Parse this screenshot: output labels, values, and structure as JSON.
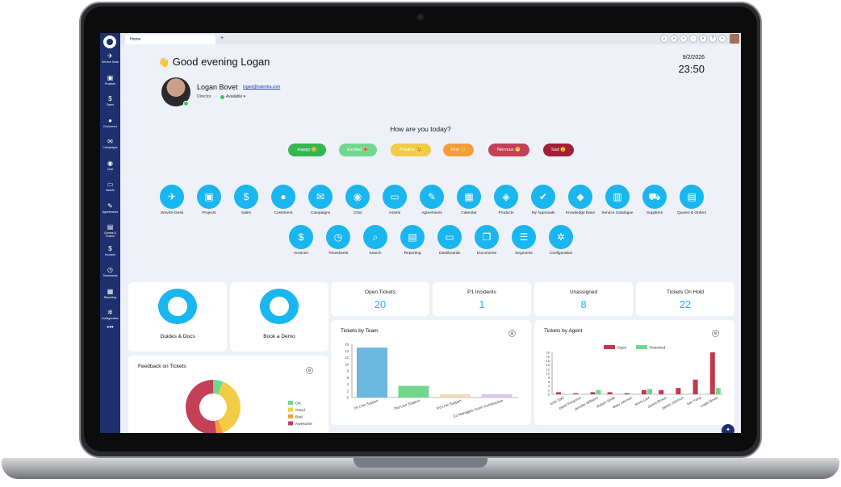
{
  "topbar": {
    "tab_home": "Home",
    "tab_add": "+",
    "icons": [
      {
        "name": "search-icon",
        "glyph": "⌕"
      },
      {
        "name": "bell-icon",
        "glyph": "•"
      },
      {
        "name": "lock-icon",
        "glyph": "•"
      },
      {
        "name": "globe-icon",
        "glyph": "◦"
      },
      {
        "name": "feed-icon",
        "glyph": "•"
      },
      {
        "name": "help-icon",
        "glyph": "?"
      },
      {
        "name": "lightbulb-icon",
        "glyph": "•"
      }
    ]
  },
  "sidebar": {
    "items": [
      {
        "name": "service-desk",
        "label": "Service Desk",
        "glyph": "✈"
      },
      {
        "name": "projects",
        "label": "Projects",
        "glyph": "▣"
      },
      {
        "name": "sales",
        "label": "Sales",
        "glyph": "$"
      },
      {
        "name": "customers",
        "label": "Customers",
        "glyph": "●"
      },
      {
        "name": "campaigns",
        "label": "Campaigns",
        "glyph": "✉"
      },
      {
        "name": "chat",
        "label": "Chat",
        "glyph": "◉"
      },
      {
        "name": "assets",
        "label": "Assets",
        "glyph": "▭"
      },
      {
        "name": "agreements",
        "label": "Agreements",
        "glyph": "✎"
      },
      {
        "name": "quotes-orders",
        "label": "Quotes & Orders",
        "glyph": "▤"
      },
      {
        "name": "invoices",
        "label": "Invoices",
        "glyph": "$"
      },
      {
        "name": "timesheets",
        "label": "Timesheets",
        "glyph": "◷"
      },
      {
        "name": "reporting",
        "label": "Reporting",
        "glyph": "▦"
      },
      {
        "name": "configuration",
        "label": "Configuration",
        "glyph": "✲"
      }
    ],
    "more": "•••"
  },
  "greeting": {
    "emoji": "👋",
    "text": "Good evening Logan"
  },
  "clock": {
    "date": "9/2/2026",
    "time": "23:50"
  },
  "user": {
    "name": "Logan Bovet",
    "email": "logan@halentra.com",
    "role": "Director",
    "status": "Available ▾"
  },
  "mood": {
    "question": "How are you today?",
    "options": [
      {
        "label": "Happy 😊",
        "color": "#34b652"
      },
      {
        "label": "Excited 😻",
        "color": "#6fd88e"
      },
      {
        "label": "Positive 😉",
        "color": "#f2cc44"
      },
      {
        "label": "Fine 🙃",
        "color": "#f59d3a"
      },
      {
        "label": "Nervous 😬",
        "color": "#c44057"
      },
      {
        "label": "Sad 😟",
        "color": "#a21f35"
      }
    ]
  },
  "apps": {
    "row1": [
      {
        "name": "service-desk",
        "label": "Service Desk",
        "glyph": "✈"
      },
      {
        "name": "projects",
        "label": "Projects",
        "glyph": "▣"
      },
      {
        "name": "sales",
        "label": "Sales",
        "glyph": "$"
      },
      {
        "name": "customers",
        "label": "Customers",
        "glyph": "●"
      },
      {
        "name": "campaigns",
        "label": "Campaigns",
        "glyph": "✉"
      },
      {
        "name": "chat",
        "label": "Chat",
        "glyph": "◉"
      },
      {
        "name": "assets",
        "label": "Assets",
        "glyph": "▭"
      },
      {
        "name": "agreements",
        "label": "Agreements",
        "glyph": "✎"
      },
      {
        "name": "calendar",
        "label": "Calendar",
        "glyph": "▦"
      },
      {
        "name": "products",
        "label": "Products",
        "glyph": "◈"
      },
      {
        "name": "my-approvals",
        "label": "My Approvals",
        "glyph": "✔"
      },
      {
        "name": "knowledge-base",
        "label": "Knowledge Base",
        "glyph": "◆"
      },
      {
        "name": "service-catalogue",
        "label": "Service Catalogue",
        "glyph": "▥"
      },
      {
        "name": "suppliers",
        "label": "Suppliers",
        "glyph": "⛟"
      },
      {
        "name": "quotes-orders",
        "label": "Quotes & Orders",
        "glyph": "▤"
      }
    ],
    "row2": [
      {
        "name": "invoices",
        "label": "Invoices",
        "glyph": "$"
      },
      {
        "name": "timesheets",
        "label": "Timesheets",
        "glyph": "◷"
      },
      {
        "name": "search",
        "label": "Search",
        "glyph": "⌕"
      },
      {
        "name": "reporting",
        "label": "Reporting",
        "glyph": "▤"
      },
      {
        "name": "dashboards",
        "label": "Dashboards",
        "glyph": "▭"
      },
      {
        "name": "documents",
        "label": "Documents",
        "glyph": "❐"
      },
      {
        "name": "segments",
        "label": "Segments",
        "glyph": "☰"
      },
      {
        "name": "configuration",
        "label": "Configuration",
        "glyph": "✲"
      }
    ]
  },
  "cards": {
    "guides": "Guides & Docs",
    "demo": "Book a Demo"
  },
  "stats": [
    {
      "name": "open-tickets",
      "label": "Open Tickets",
      "value": "20"
    },
    {
      "name": "p1-incidents",
      "label": "P1 Incidents",
      "value": "1"
    },
    {
      "name": "unassigned",
      "label": "Unassigned",
      "value": "8"
    },
    {
      "name": "tickets-on-hold",
      "label": "Tickets On Hold",
      "value": "22"
    }
  ],
  "feedback": {
    "title": "Feedback on Tickets",
    "legend": [
      {
        "label": "OK",
        "color": "#6fd88e"
      },
      {
        "label": "Good",
        "color": "#f2cc44"
      },
      {
        "label": "Bad",
        "color": "#f59d3a"
      },
      {
        "label": "Awesome",
        "color": "#c44057"
      }
    ],
    "values": [
      6,
      38,
      4,
      52
    ]
  },
  "chart_data": [
    {
      "type": "bar",
      "title": "Tickets by Team",
      "categories": [
        "1st Line Support",
        "2nd Line Support",
        "3rd Line Support",
        "Co-Managed, Acom Construction"
      ],
      "values": [
        15,
        3.5,
        1,
        1
      ],
      "colors": [
        "#6ab7e0",
        "#6fd88e",
        "#f6d9b8",
        "#d9c8ef"
      ],
      "yticks": [
        "0",
        "2",
        "4",
        "6",
        "8",
        "10",
        "12",
        "14",
        "16"
      ],
      "ylim": [
        0,
        16
      ]
    },
    {
      "type": "bar",
      "title": "Tickets by Agent",
      "categories": [
        "Amir Said",
        "David Ferguson",
        "Jennifer Williams",
        "Robert Smith",
        "Mary Johnson",
        "Kerry Last",
        "James Brown",
        "James Johnson",
        "Ken Yang",
        "Logan Bovet"
      ],
      "series": [
        {
          "name": "Open",
          "color": "#c0394f",
          "values": [
            1,
            0.5,
            1,
            1,
            0.5,
            2,
            2,
            3,
            7,
            20
          ]
        },
        {
          "name": "Resolved",
          "color": "#6fd88e",
          "values": [
            0,
            0,
            2,
            0,
            0,
            2.5,
            0,
            0,
            0,
            3
          ]
        }
      ],
      "yticks": [
        "0",
        "2",
        "4",
        "6",
        "8",
        "10",
        "12",
        "14",
        "16",
        "18",
        "20"
      ],
      "ylim": [
        0,
        20
      ]
    }
  ]
}
